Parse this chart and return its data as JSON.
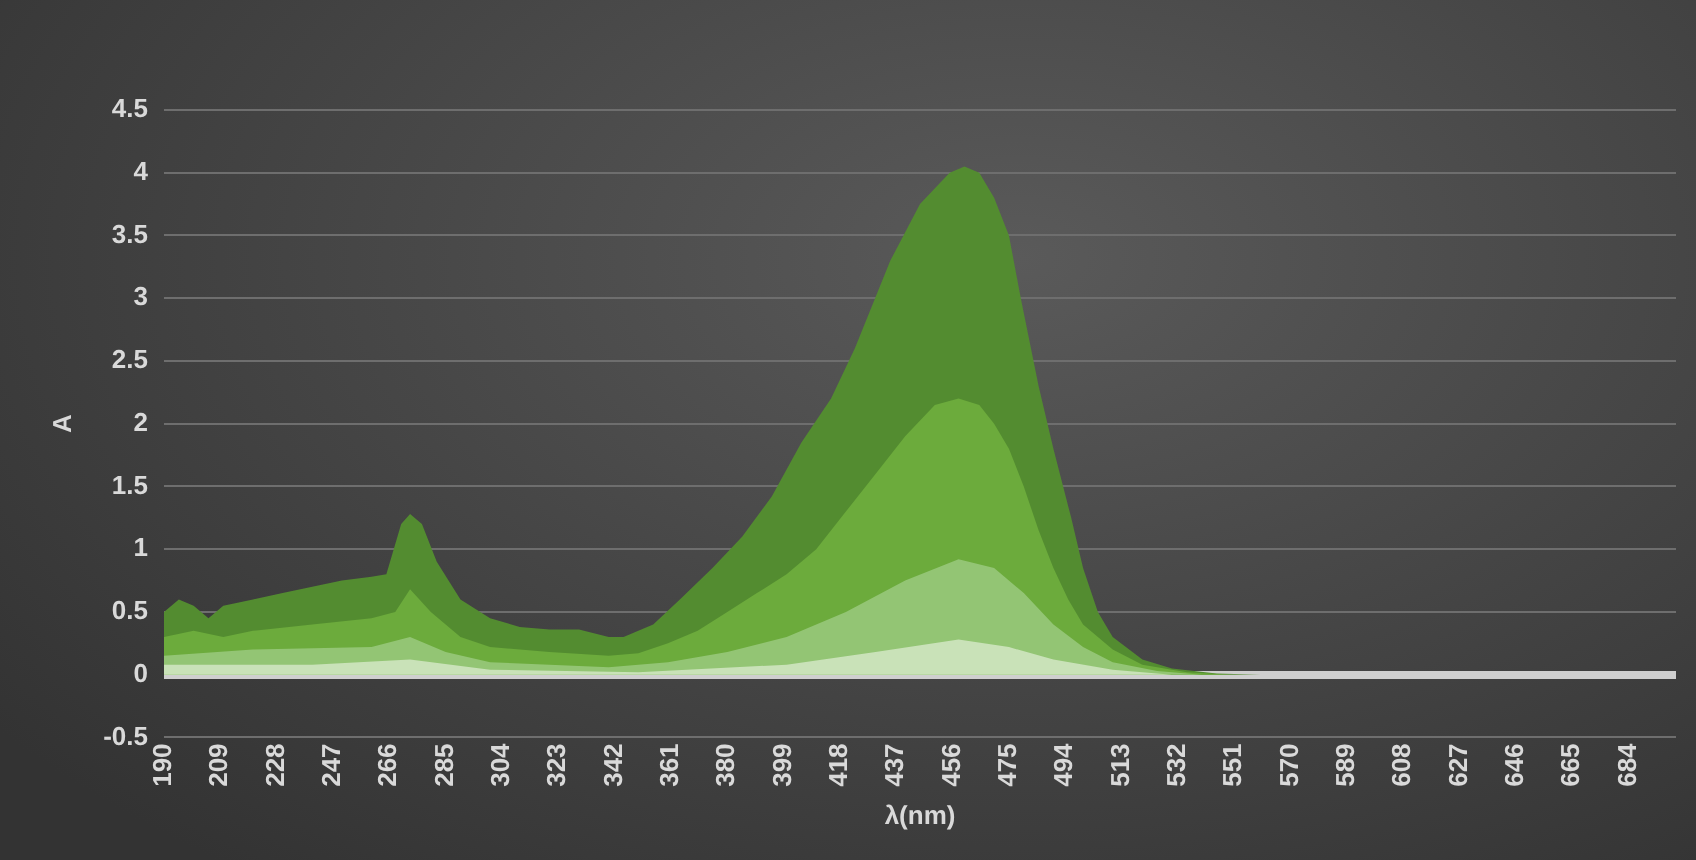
{
  "chart_data": {
    "type": "area",
    "xlabel": "λ(nm)",
    "ylabel": "A",
    "xlim": [
      190,
      700
    ],
    "xticks": [
      190,
      209,
      228,
      247,
      266,
      285,
      304,
      323,
      342,
      361,
      380,
      399,
      418,
      437,
      456,
      475,
      494,
      513,
      532,
      551,
      570,
      589,
      608,
      627,
      646,
      665,
      684
    ],
    "ylim": [
      -0.5,
      4.5
    ],
    "yticks": [
      -0.5,
      0,
      0.5,
      1,
      1.5,
      2,
      2.5,
      3,
      3.5,
      4,
      4.5
    ],
    "grid": "y",
    "legend": false,
    "series": [
      {
        "color": "#538c30",
        "x": [
          190,
          195,
          200,
          205,
          210,
          220,
          230,
          240,
          250,
          260,
          265,
          270,
          273,
          277,
          282,
          290,
          300,
          310,
          320,
          330,
          340,
          345,
          355,
          364,
          375,
          385,
          395,
          405,
          415,
          423,
          435,
          445,
          455,
          460,
          465,
          470,
          475,
          479,
          485,
          490,
          496,
          500,
          505,
          510,
          520,
          530,
          545,
          560,
          700
        ],
        "values": [
          0.5,
          0.6,
          0.55,
          0.45,
          0.55,
          0.6,
          0.65,
          0.7,
          0.75,
          0.78,
          0.8,
          1.2,
          1.28,
          1.2,
          0.9,
          0.6,
          0.45,
          0.38,
          0.36,
          0.36,
          0.3,
          0.3,
          0.4,
          0.6,
          0.85,
          1.1,
          1.42,
          1.85,
          2.2,
          2.6,
          3.3,
          3.75,
          4.0,
          4.05,
          4.0,
          3.8,
          3.5,
          3.0,
          2.3,
          1.8,
          1.25,
          0.85,
          0.5,
          0.3,
          0.12,
          0.05,
          0.01,
          0,
          0
        ]
      },
      {
        "color": "#6cab3c",
        "x": [
          190,
          200,
          210,
          220,
          240,
          260,
          268,
          273,
          280,
          290,
          300,
          320,
          340,
          350,
          360,
          370,
          380,
          390,
          400,
          410,
          420,
          430,
          440,
          450,
          458,
          465,
          470,
          475,
          480,
          485,
          490,
          495,
          500,
          510,
          520,
          535,
          550,
          700
        ],
        "values": [
          0.3,
          0.35,
          0.3,
          0.35,
          0.4,
          0.45,
          0.5,
          0.68,
          0.5,
          0.3,
          0.22,
          0.18,
          0.15,
          0.17,
          0.25,
          0.35,
          0.5,
          0.65,
          0.8,
          1.0,
          1.3,
          1.6,
          1.9,
          2.15,
          2.2,
          2.15,
          2.0,
          1.8,
          1.5,
          1.15,
          0.85,
          0.6,
          0.4,
          0.2,
          0.08,
          0.02,
          0,
          0
        ]
      },
      {
        "color": "#93c574",
        "x": [
          190,
          220,
          260,
          273,
          285,
          300,
          340,
          360,
          380,
          400,
          420,
          440,
          458,
          470,
          480,
          490,
          500,
          510,
          525,
          540,
          700
        ],
        "values": [
          0.15,
          0.2,
          0.22,
          0.3,
          0.18,
          0.1,
          0.06,
          0.1,
          0.18,
          0.3,
          0.5,
          0.75,
          0.92,
          0.85,
          0.65,
          0.4,
          0.22,
          0.1,
          0.03,
          0,
          0
        ]
      },
      {
        "color": "#c9e2b8",
        "x": [
          190,
          240,
          273,
          300,
          350,
          400,
          430,
          458,
          475,
          490,
          510,
          530,
          700
        ],
        "values": [
          0.08,
          0.08,
          0.12,
          0.04,
          0.02,
          0.08,
          0.18,
          0.28,
          0.22,
          0.12,
          0.04,
          0,
          0
        ]
      }
    ]
  }
}
